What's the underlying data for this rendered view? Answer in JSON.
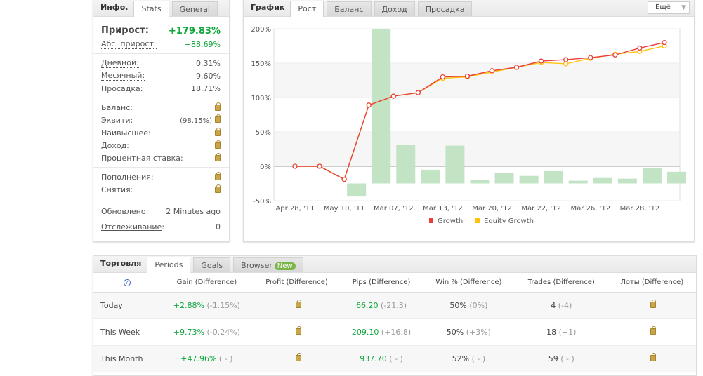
{
  "info": {
    "title": "Инфо.",
    "tabs": [
      "Stats",
      "General"
    ],
    "gain_label": "Прирост:",
    "gain": "+179.83%",
    "abs_label": "Абс. прирост:",
    "abs": "+88.69%",
    "daily_label": "Дневной:",
    "daily": "0.31%",
    "monthly_label": "Месячный:",
    "monthly": "9.60%",
    "dd_label": "Просадка:",
    "dd": "18.71%",
    "balance_label": "Баланс:",
    "equity_label": "Эквити:",
    "equity_pct": "(98.15%)",
    "highest_label": "Наивысшее:",
    "profit_label": "Доход:",
    "interest_label": "Процентная ставка:",
    "deposits_label": "Пополнения:",
    "withdrawals_label": "Снятия:",
    "updated_label": "Обновлено:",
    "updated": "2 Minutes ago",
    "tracking_label": "Отслеживание",
    "tracking": "0"
  },
  "chart_panel": {
    "title": "График",
    "tabs": [
      "Рост",
      "Баланс",
      "Доход",
      "Просадка"
    ],
    "more": "Ещё"
  },
  "chart_data": {
    "type": "line",
    "ylim": [
      -50,
      200
    ],
    "yticks": [
      "200%",
      "150%",
      "100%",
      "50%",
      "0%",
      "-50%"
    ],
    "x_tick_labels": [
      "Apr 28, '11",
      "May 10, '11",
      "Mar 07, '12",
      "Mar 13, '12",
      "Mar 20, '12",
      "Mar 22, '12",
      "Mar 26, '12",
      "Mar 28, '12"
    ],
    "series": [
      {
        "name": "Growth",
        "color": "#e8403a",
        "values": [
          0,
          0,
          -19,
          89,
          102,
          107,
          130,
          131,
          139,
          144,
          153,
          155,
          158,
          162,
          172,
          180
        ]
      },
      {
        "name": "Equity Growth",
        "color": "#ffc20e",
        "values": [
          0,
          0,
          -19,
          89,
          102,
          107,
          128,
          130,
          137,
          144,
          151,
          149,
          157,
          163,
          167,
          175
        ]
      }
    ],
    "bars": {
      "color": "#bfe3c2",
      "baseline": -25,
      "values": [
        -44,
        200,
        31,
        -5,
        30,
        -20,
        -10,
        -14,
        -7,
        -21,
        -17,
        -18,
        -3,
        -8
      ]
    },
    "grid": true,
    "legend": "bottom"
  },
  "trading": {
    "title": "Торговля",
    "tabs": [
      "Periods",
      "Goals",
      "Browser"
    ],
    "new_badge": "New",
    "help": "?",
    "columns": [
      "Gain (Difference)",
      "Profit (Difference)",
      "Pips (Difference)",
      "Win % (Difference)",
      "Trades (Difference)",
      "Лоты (Difference)"
    ],
    "rows": [
      {
        "period": "Today",
        "gain": "+2.88%",
        "gain_diff": "(-1.15%)",
        "pips": "66.20",
        "pips_diff": "(-21.3)",
        "win": "50%",
        "win_diff": "(0%)",
        "trades": "4",
        "trades_diff": "(-4)"
      },
      {
        "period": "This Week",
        "gain": "+9.73%",
        "gain_diff": "(-0.24%)",
        "pips": "209.10",
        "pips_diff": "(+16.8)",
        "win": "50%",
        "win_diff": "(+3%)",
        "trades": "18",
        "trades_diff": "(+1)"
      },
      {
        "period": "This Month",
        "gain": "+47.96%",
        "gain_diff": "( - )",
        "pips": "937.70",
        "pips_diff": "( - )",
        "win": "52%",
        "win_diff": "( - )",
        "trades": "59",
        "trades_diff": "( - )"
      }
    ]
  }
}
